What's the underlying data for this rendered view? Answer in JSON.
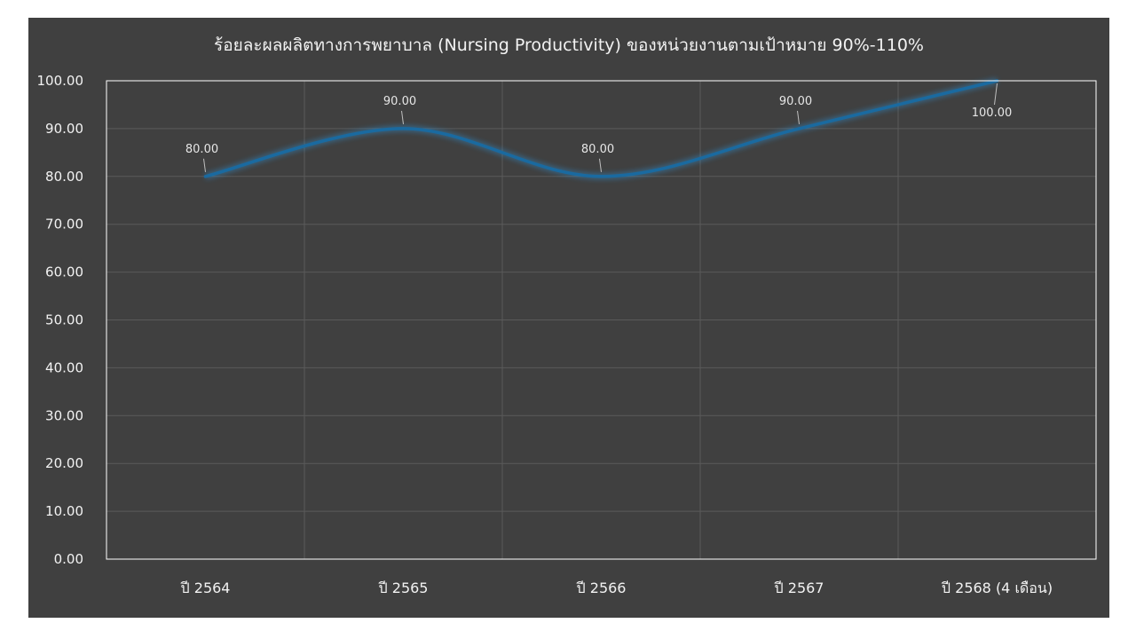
{
  "chart_data": {
    "type": "line",
    "title": "ร้อยละผลผลิตทางการพยาบาล (Nursing Productivity) ของหน่วยงานตามเป้าหมาย 90%-110%",
    "categories": [
      "ปี 2564",
      "ปี 2565",
      "ปี 2566",
      "ปี 2567",
      "ปี 2568 (4 เดือน)"
    ],
    "series": [
      {
        "values": [
          80,
          90,
          80,
          90,
          100
        ],
        "color": "#1a6aa0"
      }
    ],
    "data_labels": [
      "80.00",
      "90.00",
      "80.00",
      "90.00",
      "100.00"
    ],
    "y_ticks": [
      "0.00",
      "10.00",
      "20.00",
      "30.00",
      "40.00",
      "50.00",
      "60.00",
      "70.00",
      "80.00",
      "90.00",
      "100.00"
    ],
    "ylim": [
      0,
      100
    ],
    "smooth": true,
    "grid": true,
    "legend": "none",
    "background": "#404040",
    "plot_border_color": "#ffffff",
    "grid_color": "#5a5a5a"
  }
}
